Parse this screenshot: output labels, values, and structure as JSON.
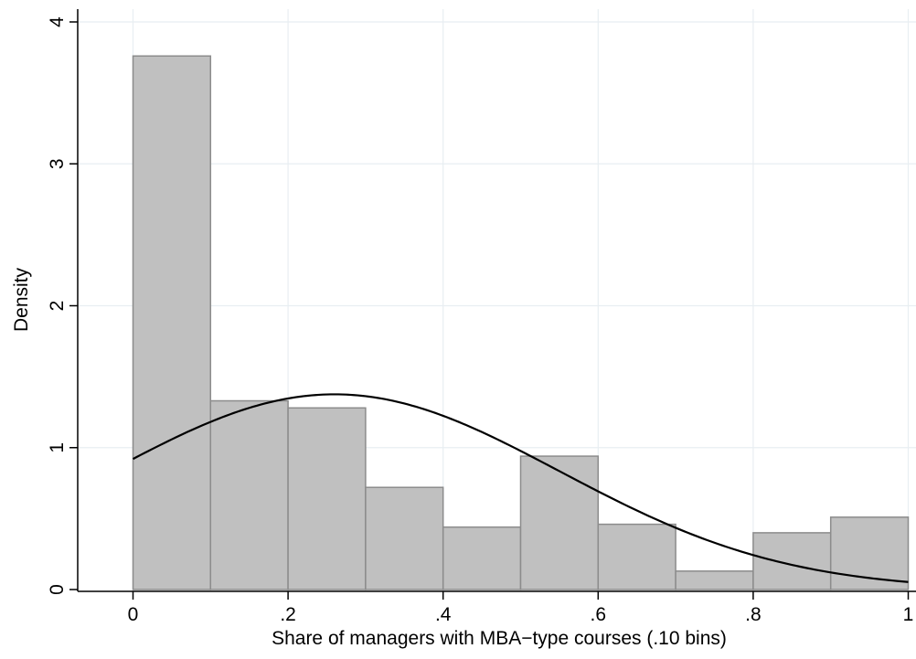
{
  "chart_data": {
    "type": "bar",
    "subtype": "histogram",
    "title": "",
    "xlabel": "Share of managers with MBA−type courses (.10 bins)",
    "ylabel": "Density",
    "bin_width": 0.1,
    "bins": [
      {
        "start": 0.0,
        "end": 0.1,
        "value": 3.76
      },
      {
        "start": 0.1,
        "end": 0.2,
        "value": 1.33
      },
      {
        "start": 0.2,
        "end": 0.3,
        "value": 1.28
      },
      {
        "start": 0.3,
        "end": 0.4,
        "value": 0.72
      },
      {
        "start": 0.4,
        "end": 0.5,
        "value": 0.44
      },
      {
        "start": 0.5,
        "end": 0.6,
        "value": 0.94
      },
      {
        "start": 0.6,
        "end": 0.7,
        "value": 0.46
      },
      {
        "start": 0.7,
        "end": 0.8,
        "value": 0.13
      },
      {
        "start": 0.8,
        "end": 0.9,
        "value": 0.4
      },
      {
        "start": 0.9,
        "end": 1.0,
        "value": 0.51
      }
    ],
    "overlay": {
      "type": "line",
      "shape": "normal density",
      "mean": 0.26,
      "sd": 0.29,
      "x_range": [
        0,
        1
      ]
    },
    "xlim": [
      -0.07,
      1.01
    ],
    "ylim": [
      0,
      4.1
    ],
    "xticks": [
      {
        "value": 0,
        "label": "0"
      },
      {
        "value": 0.2,
        "label": ".2"
      },
      {
        "value": 0.4,
        "label": ".4"
      },
      {
        "value": 0.6,
        "label": ".6"
      },
      {
        "value": 0.8,
        "label": ".8"
      },
      {
        "value": 1,
        "label": "1"
      }
    ],
    "yticks": [
      {
        "value": 0,
        "label": "0"
      },
      {
        "value": 1,
        "label": "1"
      },
      {
        "value": 2,
        "label": "2"
      },
      {
        "value": 3,
        "label": "3"
      },
      {
        "value": 4,
        "label": "4"
      }
    ],
    "grid": true,
    "legend": "none",
    "colors": {
      "bar_fill": "#c0c0c0",
      "bar_edge": "#8c8c8c",
      "curve": "#000000",
      "grid": "#e8eef2",
      "axis": "#000000"
    }
  }
}
